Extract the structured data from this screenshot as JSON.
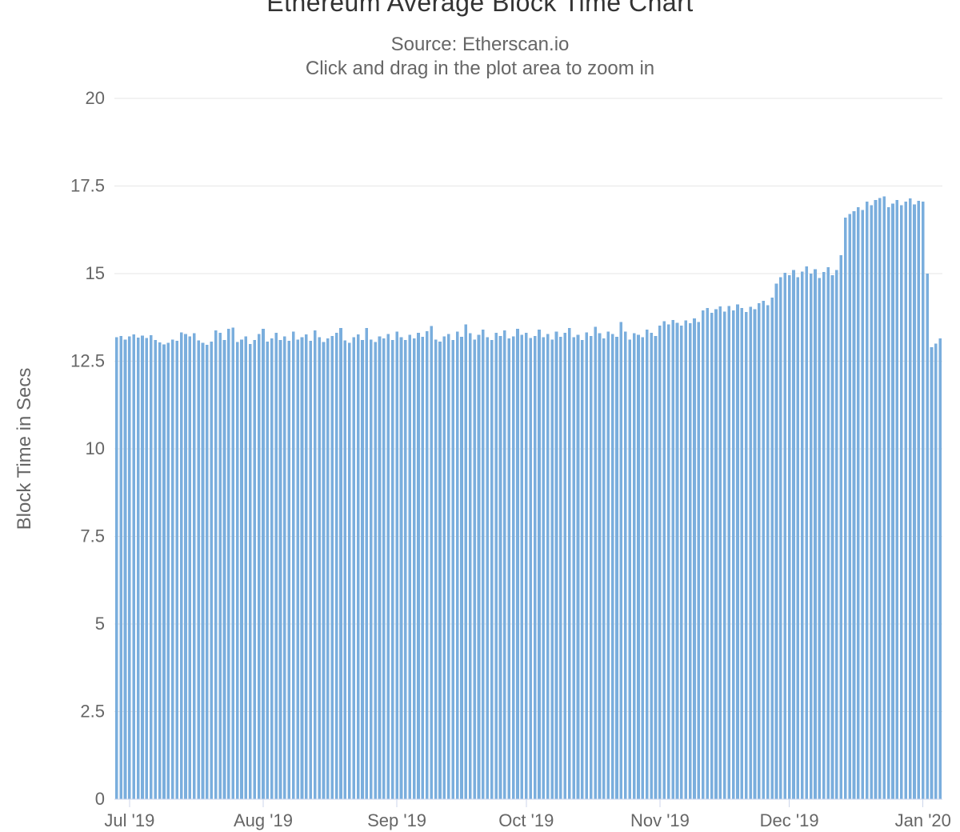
{
  "header": {
    "title": "Ethereum Average Block Time Chart",
    "subtitle_line1": "Source: Etherscan.io",
    "subtitle_line2": "Click and drag in the plot area to zoom in"
  },
  "colors": {
    "bar": "#7aaedd",
    "grid": "#e6e6e6",
    "axis_line": "#ccd6eb",
    "title_text": "#333333",
    "label_text": "#666666"
  },
  "chart_data": {
    "type": "bar",
    "title": "Ethereum Average Block Time Chart",
    "subtitle": [
      "Source: Etherscan.io",
      "Click and drag in the plot area to zoom in"
    ],
    "xlabel": "",
    "ylabel": "Block Time in Secs",
    "ylim": [
      0,
      20
    ],
    "ytick_values": [
      0,
      2.5,
      5,
      7.5,
      10,
      12.5,
      15,
      17.5,
      20
    ],
    "ytick_labels": [
      "0",
      "2.5",
      "5",
      "7.5",
      "10",
      "12.5",
      "15",
      "17.5",
      "20"
    ],
    "grid": "horizontal",
    "legend": "none",
    "start_date": "2019-06-28",
    "frequency": "daily",
    "xtick_labels": [
      "Jul '19",
      "Aug '19",
      "Sep '19",
      "Oct '19",
      "Nov '19",
      "Dec '19",
      "Jan '20"
    ],
    "xtick_day_indices": [
      3,
      34,
      65,
      95,
      126,
      156,
      187
    ],
    "values": [
      13.18,
      13.22,
      13.12,
      13.21,
      13.26,
      13.17,
      13.23,
      13.16,
      13.24,
      13.1,
      13.04,
      12.98,
      13.03,
      13.12,
      13.08,
      13.32,
      13.28,
      13.21,
      13.3,
      13.09,
      13.02,
      12.97,
      13.06,
      13.38,
      13.31,
      13.1,
      13.42,
      13.46,
      13.05,
      13.12,
      13.21,
      12.99,
      13.11,
      13.28,
      13.42,
      13.06,
      13.15,
      13.31,
      13.1,
      13.21,
      13.08,
      13.35,
      13.12,
      13.18,
      13.26,
      13.08,
      13.38,
      13.18,
      13.05,
      13.15,
      13.22,
      13.31,
      13.45,
      13.09,
      13.02,
      13.18,
      13.26,
      13.1,
      13.45,
      13.12,
      13.05,
      13.21,
      13.15,
      13.28,
      13.11,
      13.35,
      13.18,
      13.1,
      13.25,
      13.15,
      13.31,
      13.2,
      13.36,
      13.5,
      13.12,
      13.06,
      13.21,
      13.28,
      13.1,
      13.35,
      13.2,
      13.55,
      13.3,
      13.12,
      13.25,
      13.4,
      13.18,
      13.1,
      13.31,
      13.22,
      13.38,
      13.15,
      13.21,
      13.42,
      13.25,
      13.31,
      13.16,
      13.22,
      13.4,
      13.18,
      13.28,
      13.12,
      13.35,
      13.2,
      13.31,
      13.45,
      13.18,
      13.25,
      13.1,
      13.32,
      13.22,
      13.48,
      13.3,
      13.15,
      13.35,
      13.28,
      13.2,
      13.62,
      13.35,
      13.12,
      13.3,
      13.25,
      13.18,
      13.4,
      13.31,
      13.22,
      13.52,
      13.64,
      13.55,
      13.68,
      13.6,
      13.52,
      13.66,
      13.58,
      13.72,
      13.62,
      13.95,
      14.02,
      13.88,
      13.98,
      14.06,
      13.92,
      14.08,
      13.95,
      14.12,
      14.02,
      13.9,
      14.05,
      13.98,
      14.16,
      14.22,
      14.1,
      14.32,
      14.72,
      14.9,
      15.02,
      14.95,
      15.1,
      14.9,
      15.06,
      15.2,
      15.0,
      15.12,
      14.88,
      15.05,
      15.18,
      14.96,
      15.1,
      15.52,
      16.6,
      16.7,
      16.78,
      16.9,
      16.82,
      17.05,
      16.95,
      17.1,
      17.16,
      17.2,
      16.9,
      17.0,
      17.1,
      16.95,
      17.06,
      17.15,
      16.98,
      17.08,
      17.06,
      15.0,
      12.9,
      13.0,
      13.15
    ]
  }
}
